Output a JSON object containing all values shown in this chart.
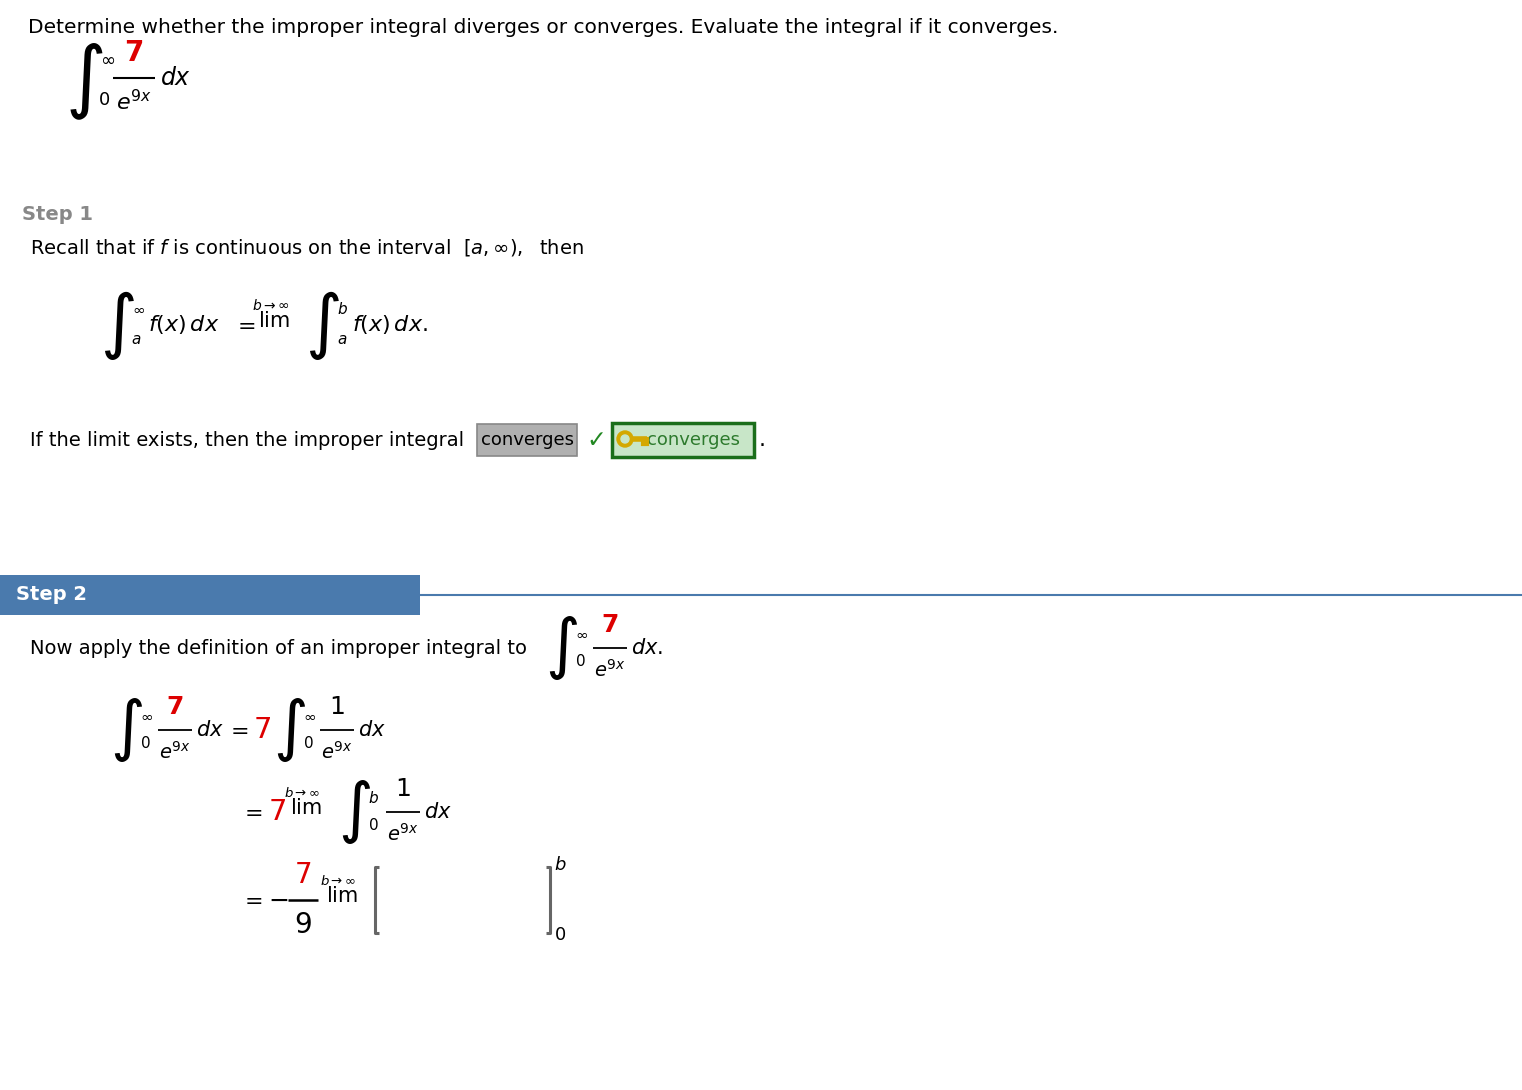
{
  "background_color": "#ffffff",
  "title_text": "Determine whether the improper integral diverges or converges. Evaluate the integral if it converges.",
  "title_fontsize": 14.5,
  "title_color": "#000000",
  "step1_label": "Step 1",
  "step1_text_color": "#888888",
  "step2_label": "Step 2",
  "step2_bg": "#4a7aad",
  "step2_text_color": "#ffffff",
  "step2_line_color": "#4a7aad",
  "red_color": "#dd0000",
  "black_color": "#000000",
  "gray_color": "#888888",
  "converges_box_bg": "#aaaaaa",
  "converges_box_edge": "#888888",
  "converges_answer_box_edge": "#1a6e1a",
  "converges_answer_bg": "#c8e6c8",
  "checkmark_color": "#2d7a2d",
  "key_color": "#cc8800",
  "answer_text_color": "#2d7a2d"
}
